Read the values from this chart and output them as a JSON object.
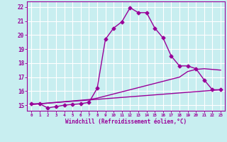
{
  "background_color": "#c8eef0",
  "grid_color": "#ffffff",
  "line_color": "#990099",
  "x_label": "Windchill (Refroidissement éolien,°C)",
  "ylim": [
    14.6,
    22.4
  ],
  "xlim": [
    -0.5,
    23.5
  ],
  "yticks": [
    15,
    16,
    17,
    18,
    19,
    20,
    21,
    22
  ],
  "xticks": [
    0,
    1,
    2,
    3,
    4,
    5,
    6,
    7,
    8,
    9,
    10,
    11,
    12,
    13,
    14,
    15,
    16,
    17,
    18,
    19,
    20,
    21,
    22,
    23
  ],
  "line1_x": [
    0,
    1,
    2,
    3,
    4,
    5,
    6,
    7,
    8,
    9,
    10,
    11,
    12,
    13,
    14,
    15,
    16,
    17,
    18,
    19,
    20,
    21,
    22,
    23
  ],
  "line1_y": [
    15.1,
    15.1,
    14.8,
    14.9,
    15.0,
    15.05,
    15.1,
    15.2,
    16.2,
    19.7,
    20.5,
    20.95,
    21.95,
    21.6,
    21.6,
    20.5,
    19.8,
    18.5,
    17.8,
    17.8,
    17.6,
    16.8,
    16.1,
    16.1
  ],
  "line2_x": [
    0,
    23
  ],
  "line2_y": [
    15.05,
    16.1
  ],
  "line3_x": [
    0,
    1,
    2,
    3,
    4,
    5,
    6,
    7,
    8,
    9,
    10,
    11,
    12,
    13,
    14,
    15,
    16,
    17,
    18,
    19,
    20,
    21,
    22,
    23
  ],
  "line3_y": [
    15.05,
    15.1,
    15.15,
    15.2,
    15.25,
    15.3,
    15.35,
    15.4,
    15.5,
    15.65,
    15.8,
    15.95,
    16.1,
    16.25,
    16.4,
    16.55,
    16.7,
    16.85,
    17.0,
    17.4,
    17.55,
    17.6,
    17.55,
    17.5
  ],
  "marker_size": 2.5,
  "line_width": 1.0
}
